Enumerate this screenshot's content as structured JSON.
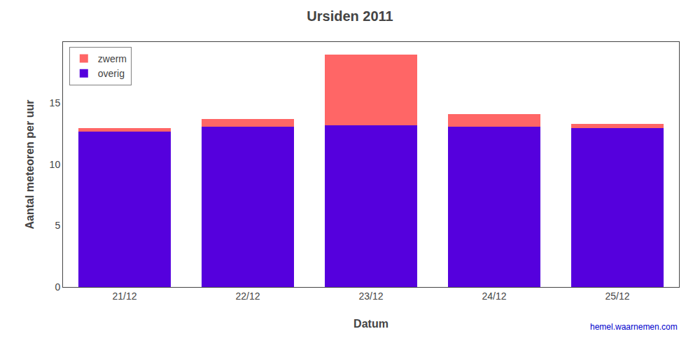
{
  "chart_data": {
    "type": "bar",
    "stacked": true,
    "title": "Ursiden 2011",
    "x_label": "Datum",
    "y_label": "Aantal meteoren per uur",
    "categories": [
      "21/12",
      "22/12",
      "23/12",
      "24/12",
      "25/12"
    ],
    "series": [
      {
        "name": "overig",
        "color": "#5500dd",
        "values": [
          12.7,
          13.1,
          13.2,
          13.1,
          13.0
        ]
      },
      {
        "name": "zwerm",
        "color": "#ff6666",
        "values": [
          0.3,
          0.6,
          5.8,
          1.0,
          0.3
        ]
      }
    ],
    "ylim": [
      0,
      20
    ],
    "yticks": [
      0,
      5,
      10,
      15
    ],
    "grid": false,
    "legend": "upper left",
    "annotations": [
      "hemel.waarnemen.com"
    ]
  }
}
